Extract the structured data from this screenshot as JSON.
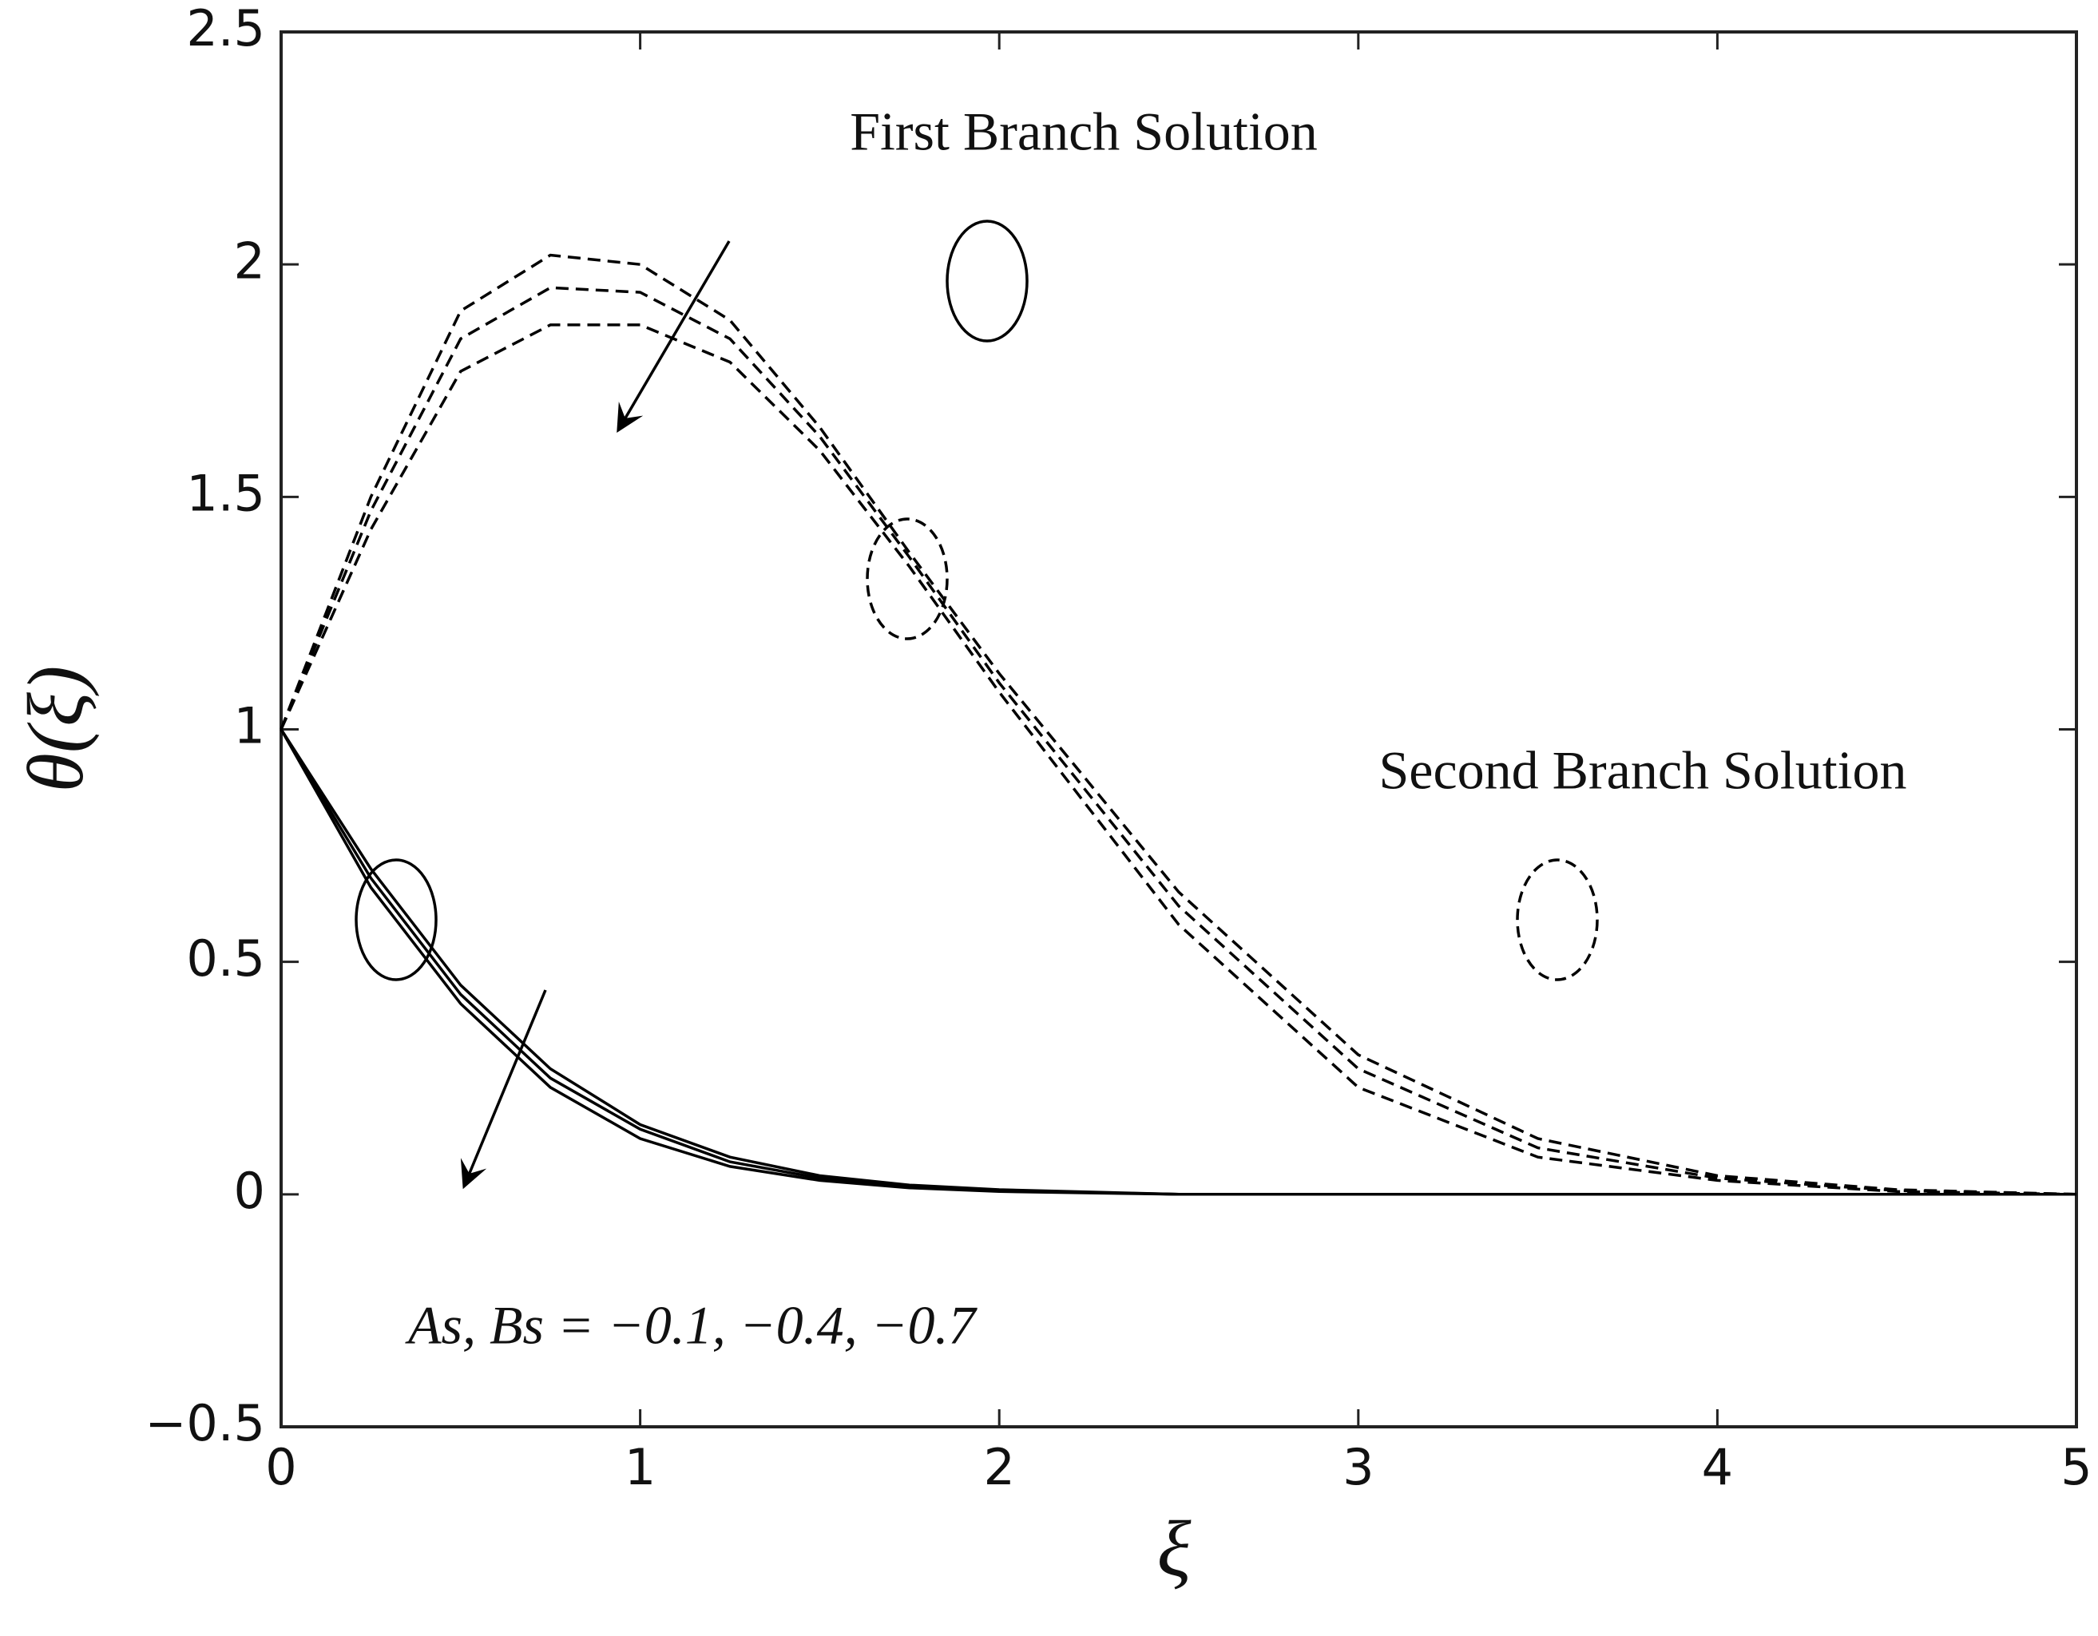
{
  "chart_data": {
    "type": "line",
    "xlabel": "ξ",
    "ylabel": "θ(ξ)",
    "annotations": [
      "First Branch Solution",
      "Second Branch Solution",
      "As, Bs = −0.1, −0.4, −0.7"
    ],
    "x": [
      0,
      0.25,
      0.5,
      0.75,
      1,
      1.25,
      1.5,
      1.75,
      2,
      2.5,
      3,
      3.5,
      4,
      4.5,
      5
    ],
    "series": [
      {
        "color": "#000000",
        "dash": false,
        "values": [
          1,
          0.7,
          0.45,
          0.27,
          0.15,
          0.08,
          0.04,
          0.02,
          0.01,
          0,
          0,
          0,
          0,
          0,
          0
        ]
      },
      {
        "color": "#000000",
        "dash": false,
        "values": [
          1,
          0.68,
          0.43,
          0.25,
          0.14,
          0.07,
          0.035,
          0.017,
          0.008,
          0,
          0,
          0,
          0,
          0,
          0
        ]
      },
      {
        "color": "#000000",
        "dash": false,
        "values": [
          1,
          0.66,
          0.41,
          0.23,
          0.12,
          0.06,
          0.03,
          0.014,
          0.006,
          0,
          0,
          0,
          0,
          0,
          0
        ]
      },
      {
        "color": "#000000",
        "dash": true,
        "values": [
          1,
          1.5,
          1.9,
          2.02,
          2.0,
          1.88,
          1.65,
          1.38,
          1.12,
          0.65,
          0.3,
          0.12,
          0.04,
          0.01,
          0
        ]
      },
      {
        "color": "#000000",
        "dash": true,
        "values": [
          1,
          1.47,
          1.84,
          1.95,
          1.94,
          1.84,
          1.63,
          1.37,
          1.1,
          0.62,
          0.27,
          0.1,
          0.035,
          0.008,
          0
        ]
      },
      {
        "color": "#000000",
        "dash": true,
        "values": [
          1,
          1.43,
          1.77,
          1.87,
          1.87,
          1.79,
          1.6,
          1.35,
          1.08,
          0.58,
          0.23,
          0.08,
          0.03,
          0.006,
          0
        ]
      }
    ],
    "xlim": [
      0,
      5
    ],
    "xticks": [
      0,
      1,
      2,
      3,
      4,
      5
    ],
    "ylim": [
      -0.5,
      2.5
    ],
    "yticks": [
      {
        "value": -0.5,
        "label": "−0.5"
      },
      0,
      0.5,
      1,
      1.5,
      2,
      2.5
    ],
    "grid": false
  }
}
